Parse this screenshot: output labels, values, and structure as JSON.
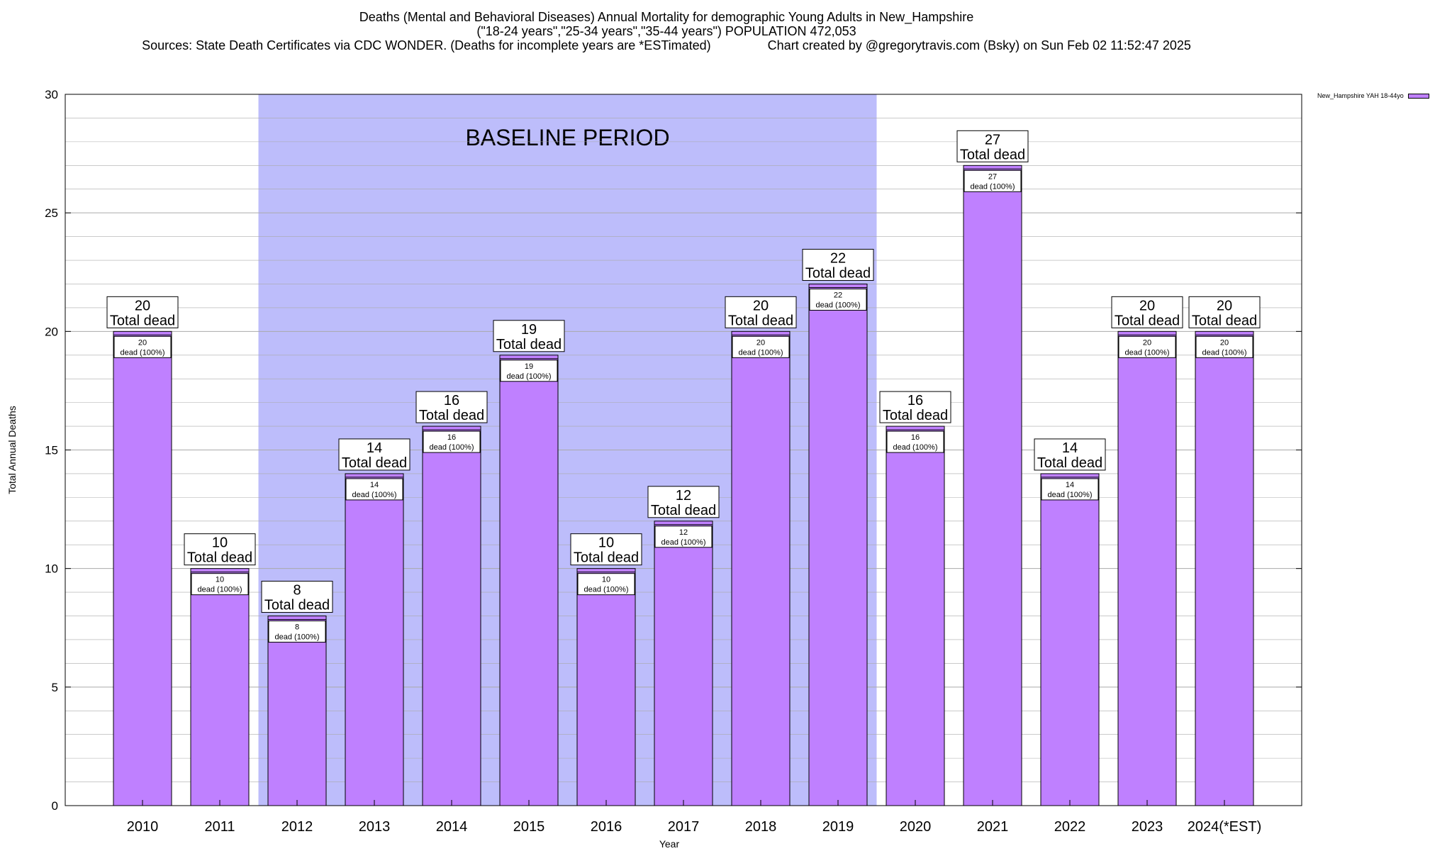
{
  "header": {
    "title_line1": "Deaths (Mental and Behavioral Diseases) Annual Mortality for demographic Young Adults in New_Hampshire",
    "title_line2": "(\"18-24 years\",\"25-34 years\",\"35-44 years\") POPULATION 472,053",
    "title_line3": "Sources: State Death Certificates via CDC WONDER. (Deaths for incomplete years are *ESTimated)                Chart created by @gregorytravis.com (Bsky) on Sun Feb 02 11:52:47 2025"
  },
  "legend": {
    "label": "New_Hampshire YAH 18-44yo"
  },
  "colors": {
    "bar": "#bf80ff",
    "baseline_band": "#bdbdfb",
    "grid": "#aaaaaa"
  },
  "chart_data": {
    "type": "bar",
    "xlabel": "Year",
    "ylabel": "Total Annual Deaths",
    "ylim": [
      0,
      30
    ],
    "yticks": [
      0,
      5,
      10,
      15,
      20,
      25,
      30
    ],
    "minor_grid_step": 1,
    "grid": true,
    "legend_position": "top-right, outside plot",
    "categories": [
      "2010",
      "2011",
      "2012",
      "2013",
      "2014",
      "2015",
      "2016",
      "2017",
      "2018",
      "2019",
      "2020",
      "2021",
      "2022",
      "2023",
      "2024(*EST)"
    ],
    "series": [
      {
        "name": "New_Hampshire YAH 18-44yo",
        "values": [
          20,
          10,
          8,
          14,
          16,
          19,
          10,
          12,
          20,
          22,
          16,
          27,
          14,
          20,
          20
        ]
      }
    ],
    "total_label_suffix": "Total dead",
    "inner_label_suffix": "dead (100%)",
    "annotation": {
      "text": "BASELINE PERIOD",
      "start_category": "2012",
      "end_category": "2019"
    }
  }
}
